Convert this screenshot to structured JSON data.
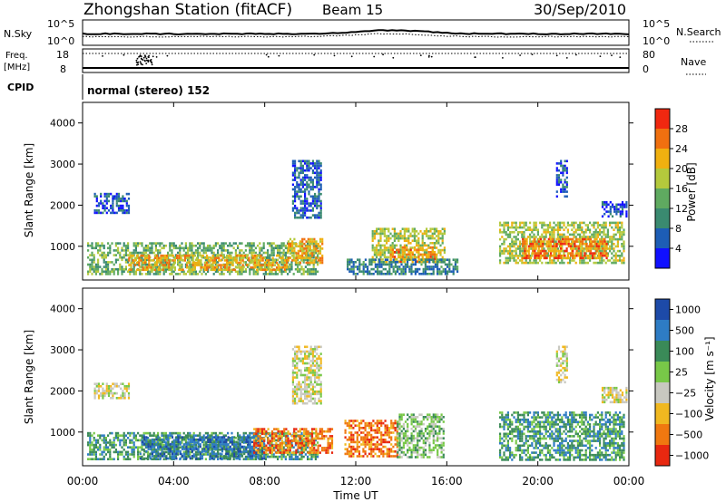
{
  "header": {
    "title": "Zhongshan Station (fitACF)",
    "beam": "Beam 15",
    "date": "30/Sep/2010"
  },
  "strips": {
    "nsky_label": "N.Sky",
    "nsky_ticks": [
      "10^5",
      "10^0"
    ],
    "nsearch_label": "N.Search",
    "nsearch_ticks": [
      "10^5",
      "10^0"
    ],
    "freq_label_1": "Freq.",
    "freq_label_2": "[MHz]",
    "freq_ticks": [
      "18",
      "8"
    ],
    "nave_label": "Nave",
    "nave_ticks": [
      "80",
      "0"
    ],
    "cpid_label": "CPID",
    "cpid_value": "normal (stereo) 152"
  },
  "colors": {
    "power": [
      "#1010ff",
      "#1d5db5",
      "#3a8a70",
      "#5faa60",
      "#b4c93c",
      "#f0b010",
      "#f07010",
      "#f02810"
    ],
    "velocity": [
      "#1d4aa8",
      "#2e7cc4",
      "#3a8a58",
      "#78c848",
      "#c8c8c0",
      "#f0b820",
      "#f07810",
      "#e82810"
    ],
    "grey_bg": "#ffffff"
  },
  "chart_data": [
    {
      "type": "heatmap",
      "name": "power",
      "ylabel": "Slant Range [km]",
      "ylim": [
        180,
        4500
      ],
      "yticks": [
        "1000",
        "2000",
        "3000",
        "4000"
      ],
      "xlim": [
        0,
        24
      ],
      "colorbar": {
        "label": "Power [dB]",
        "ticks": [
          "4",
          "8",
          "12",
          "16",
          "20",
          "24",
          "28"
        ],
        "range": [
          0,
          32
        ]
      },
      "regions": [
        {
          "t0": 0.2,
          "t1": 10.3,
          "r0": 350,
          "r1": 1100,
          "level": 14
        },
        {
          "t0": 2.0,
          "t1": 9.0,
          "r0": 400,
          "r1": 800,
          "level": 22
        },
        {
          "t0": 9.0,
          "t1": 10.5,
          "r0": 600,
          "r1": 1200,
          "level": 22
        },
        {
          "t0": 9.2,
          "t1": 10.5,
          "r0": 1700,
          "r1": 3100,
          "level": 6
        },
        {
          "t0": 0.5,
          "t1": 2.0,
          "r0": 1800,
          "r1": 2300,
          "level": 6
        },
        {
          "t0": 12.7,
          "t1": 15.9,
          "r0": 600,
          "r1": 1450,
          "level": 18
        },
        {
          "t0": 13.5,
          "t1": 15.6,
          "r0": 600,
          "r1": 1000,
          "level": 24
        },
        {
          "t0": 11.6,
          "t1": 16.5,
          "r0": 300,
          "r1": 700,
          "level": 9
        },
        {
          "t0": 18.3,
          "t1": 23.8,
          "r0": 600,
          "r1": 1600,
          "level": 17
        },
        {
          "t0": 19.3,
          "t1": 23.0,
          "r0": 700,
          "r1": 1200,
          "level": 25
        },
        {
          "t0": 20.8,
          "t1": 21.3,
          "r0": 2200,
          "r1": 3100,
          "level": 6
        },
        {
          "t0": 22.8,
          "t1": 23.9,
          "r0": 1700,
          "r1": 2100,
          "level": 6
        }
      ]
    },
    {
      "type": "heatmap",
      "name": "velocity",
      "ylabel": "Slant Range [km]",
      "ylim": [
        180,
        4500
      ],
      "yticks": [
        "1000",
        "2000",
        "3000",
        "4000"
      ],
      "xlabel": "Time UT",
      "xticks": [
        "00:00",
        "04:00",
        "08:00",
        "12:00",
        "16:00",
        "20:00",
        "00:00"
      ],
      "xlim": [
        0,
        24
      ],
      "colorbar": {
        "label": "Velocity [m s⁻¹]",
        "ticks": [
          "1000",
          "500",
          "100",
          "25",
          "−25",
          "−100",
          "−500",
          "−1000"
        ]
      },
      "regions": [
        {
          "t0": 0.2,
          "t1": 10.3,
          "r0": 350,
          "r1": 1000,
          "level": 2
        },
        {
          "t0": 2.5,
          "t1": 8.0,
          "r0": 350,
          "r1": 900,
          "level": 1
        },
        {
          "t0": 7.5,
          "t1": 11.0,
          "r0": 500,
          "r1": 1100,
          "level": 6
        },
        {
          "t0": 9.2,
          "t1": 10.5,
          "r0": 1700,
          "r1": 3100,
          "level": 4
        },
        {
          "t0": 0.5,
          "t1": 2.0,
          "r0": 1800,
          "r1": 2200,
          "level": 4
        },
        {
          "t0": 11.5,
          "t1": 13.8,
          "r0": 400,
          "r1": 1300,
          "level": 6
        },
        {
          "t0": 13.8,
          "t1": 15.9,
          "r0": 400,
          "r1": 1450,
          "level": 3
        },
        {
          "t0": 18.3,
          "t1": 23.8,
          "r0": 300,
          "r1": 1500,
          "level": 2
        },
        {
          "t0": 20.8,
          "t1": 21.3,
          "r0": 2200,
          "r1": 3100,
          "level": 4
        },
        {
          "t0": 22.8,
          "t1": 23.9,
          "r0": 1700,
          "r1": 2100,
          "level": 4
        }
      ]
    }
  ]
}
